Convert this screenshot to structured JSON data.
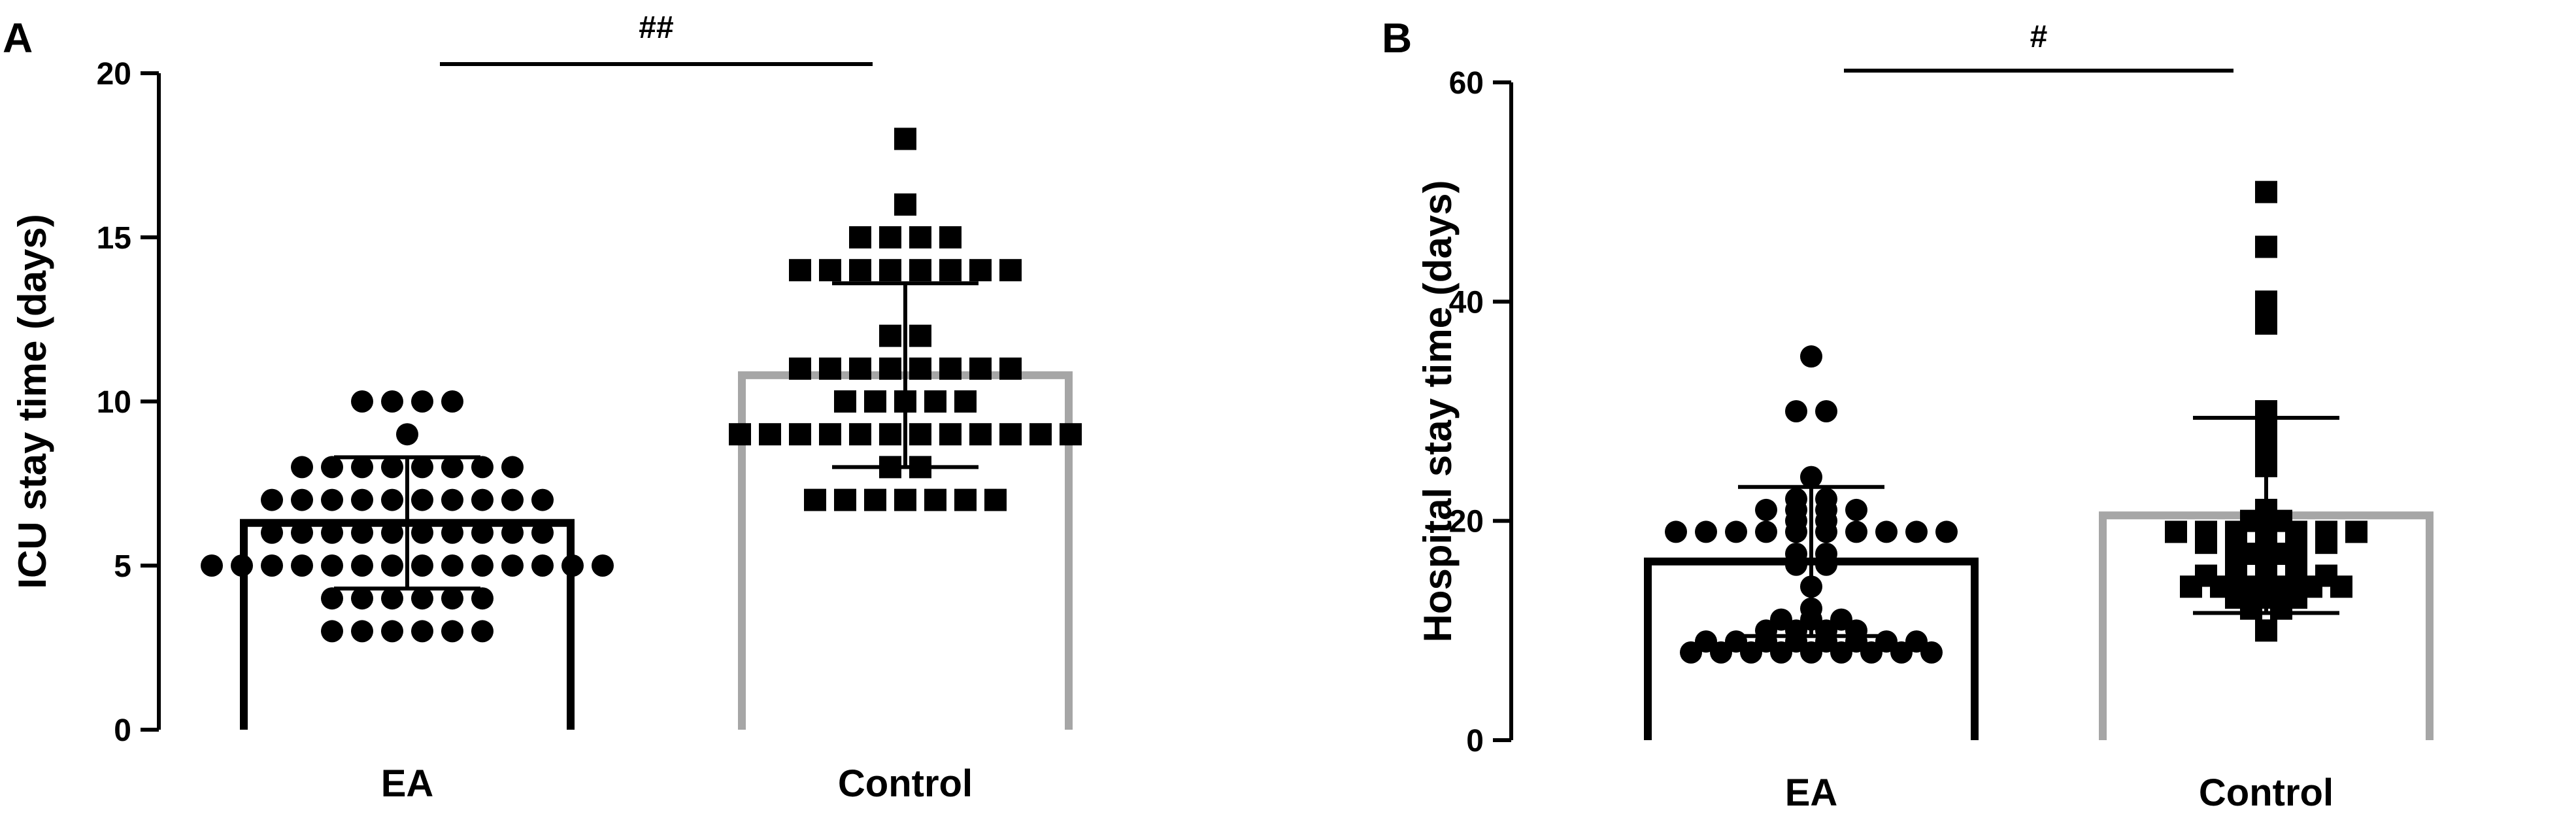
{
  "chart_data": [
    {
      "panel": "A",
      "type": "bar",
      "categories": [
        "EA",
        "Control"
      ],
      "ylabel": "ICU stay time (days)",
      "xlabel": "",
      "ylim": [
        0,
        20
      ],
      "yticks": [
        0,
        5,
        10,
        15,
        20
      ],
      "significance": "##",
      "series": [
        {
          "category": "EA",
          "mean": 6.3,
          "sd": 2.0,
          "marker": "circle",
          "bar_color": "#000000",
          "points": [
            10,
            10,
            10,
            10,
            9,
            8,
            8,
            8,
            8,
            8,
            8,
            8,
            8,
            7,
            7,
            7,
            7,
            7,
            7,
            7,
            7,
            7,
            7,
            6,
            6,
            6,
            6,
            6,
            6,
            6,
            6,
            6,
            6,
            5,
            5,
            5,
            5,
            5,
            5,
            5,
            5,
            5,
            5,
            5,
            5,
            5,
            5,
            4,
            4,
            4,
            4,
            4,
            4,
            3,
            3,
            3,
            3,
            3,
            3
          ]
        },
        {
          "category": "Control",
          "mean": 10.8,
          "sd": 2.8,
          "marker": "square",
          "bar_color": "#a6a6a6",
          "points": [
            18,
            16,
            15,
            15,
            15,
            15,
            14,
            14,
            14,
            14,
            14,
            14,
            14,
            14,
            12,
            12,
            11,
            11,
            11,
            11,
            11,
            11,
            11,
            11,
            10,
            10,
            10,
            10,
            10,
            9,
            9,
            9,
            9,
            9,
            9,
            9,
            9,
            9,
            9,
            9,
            9,
            8,
            8,
            7,
            7,
            7,
            7,
            7,
            7,
            7
          ]
        }
      ]
    },
    {
      "panel": "B",
      "type": "bar",
      "categories": [
        "EA",
        "Control"
      ],
      "ylabel": "Hospital stay time (days)",
      "xlabel": "",
      "ylim": [
        0,
        60
      ],
      "yticks": [
        0,
        20,
        40,
        60
      ],
      "significance": "#",
      "series": [
        {
          "category": "EA",
          "mean": 16.3,
          "sd": 6.8,
          "marker": "circle",
          "bar_color": "#000000",
          "points": [
            35,
            30,
            30,
            24,
            22,
            22,
            21,
            21,
            21,
            21,
            20,
            20,
            19,
            19,
            19,
            19,
            19,
            19,
            19,
            19,
            19,
            19,
            17,
            17,
            16,
            16,
            14,
            12,
            11,
            11,
            11,
            10,
            10,
            10,
            10,
            9,
            9,
            9,
            9,
            9,
            9,
            9,
            9,
            8,
            8,
            8,
            8,
            8,
            8,
            8,
            8,
            8
          ]
        },
        {
          "category": "Control",
          "mean": 20.5,
          "sd": 8.9,
          "marker": "square",
          "bar_color": "#a6a6a6",
          "points": [
            50,
            45,
            40,
            38,
            30,
            29,
            27,
            25,
            21,
            20,
            20,
            19,
            19,
            19,
            19,
            19,
            19,
            19,
            18,
            18,
            18,
            18,
            18,
            17,
            17,
            16,
            16,
            16,
            15,
            15,
            15,
            15,
            15,
            14,
            14,
            14,
            14,
            14,
            14,
            13,
            13,
            13,
            12,
            12,
            10
          ]
        }
      ]
    }
  ]
}
